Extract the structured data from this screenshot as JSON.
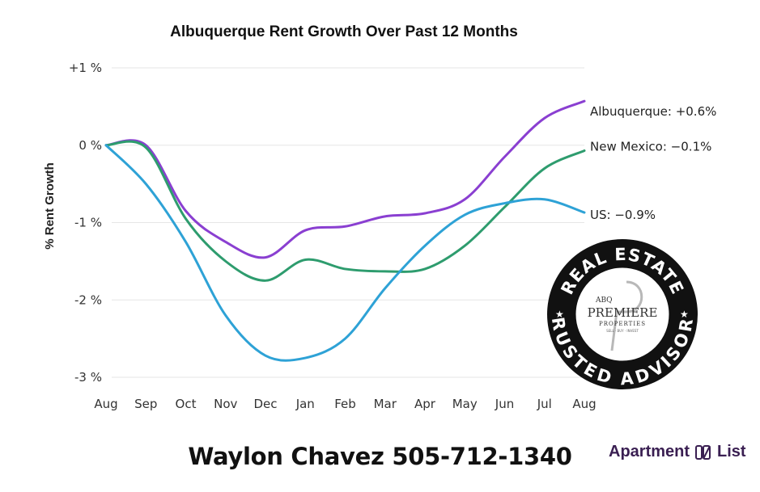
{
  "chart_data": {
    "type": "line",
    "title": "Albuquerque Rent Growth Over Past 12 Months",
    "ylabel": "% Rent Growth",
    "xlabel": "",
    "categories": [
      "Aug",
      "Sep",
      "Oct",
      "Nov",
      "Dec",
      "Jan",
      "Feb",
      "Mar",
      "Apr",
      "May",
      "Jun",
      "Jul",
      "Aug"
    ],
    "ylim": [
      -3,
      1
    ],
    "y_ticks": [
      {
        "value": 1,
        "label": "+1 %"
      },
      {
        "value": 0,
        "label": "0 %"
      },
      {
        "value": -1,
        "label": "-1 %"
      },
      {
        "value": -2,
        "label": "-2 %"
      },
      {
        "value": -3,
        "label": "-3 %"
      }
    ],
    "grid": "horizontal",
    "series": [
      {
        "name": "Albuquerque",
        "end_label": "Albuquerque: +0.6%",
        "color": "#8a3fd1",
        "values": [
          0,
          0.0,
          -0.85,
          -1.25,
          -1.45,
          -1.1,
          -1.05,
          -0.92,
          -0.88,
          -0.7,
          -0.15,
          0.35,
          0.57
        ]
      },
      {
        "name": "New Mexico",
        "end_label": "New Mexico: −0.1%",
        "color": "#2e9c6e",
        "values": [
          0,
          -0.03,
          -0.95,
          -1.5,
          -1.75,
          -1.48,
          -1.6,
          -1.63,
          -1.6,
          -1.3,
          -0.8,
          -0.3,
          -0.07
        ]
      },
      {
        "name": "US",
        "end_label": "US: −0.9%",
        "color": "#2ea2d6",
        "values": [
          0,
          -0.5,
          -1.25,
          -2.2,
          -2.72,
          -2.75,
          -2.5,
          -1.85,
          -1.3,
          -0.9,
          -0.75,
          -0.7,
          -0.87
        ]
      }
    ]
  },
  "footer": {
    "contact": "Waylon Chavez 505-712-1340",
    "brand": "Apartment",
    "brand_suffix": "List"
  },
  "badge": {
    "top_text": "REAL ESTATE",
    "bottom_text": "TRUSTED ADVISORS",
    "line1": "ABQ",
    "line2": "PREMIERE",
    "line3": "PROPERTIES",
    "line4": "SELL · BUY · INVEST"
  }
}
